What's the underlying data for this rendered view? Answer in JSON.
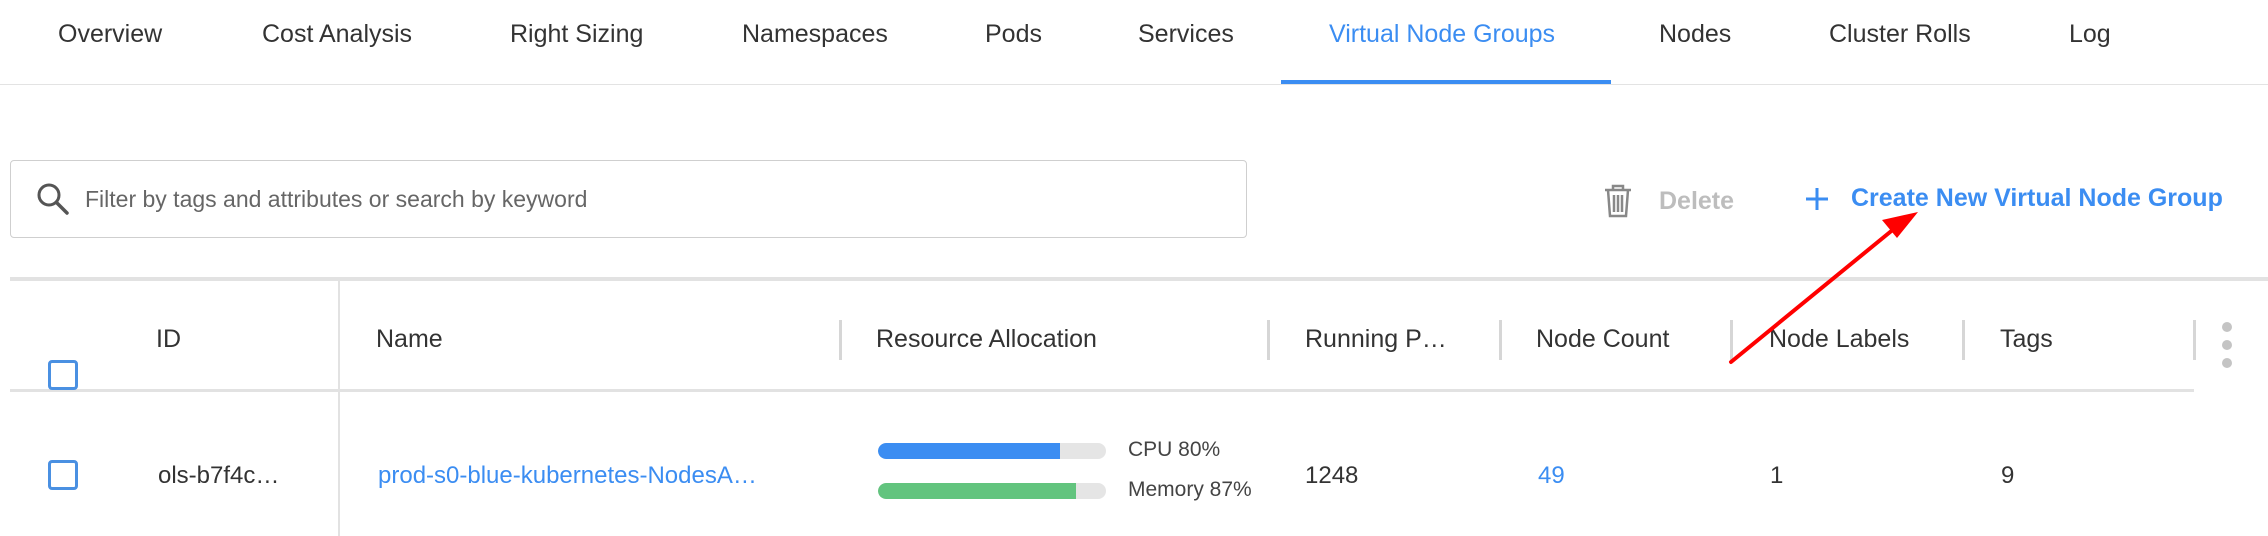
{
  "tabs": [
    {
      "label": "Overview",
      "active": false
    },
    {
      "label": "Cost Analysis",
      "active": false
    },
    {
      "label": "Right Sizing",
      "active": false
    },
    {
      "label": "Namespaces",
      "active": false
    },
    {
      "label": "Pods",
      "active": false
    },
    {
      "label": "Services",
      "active": false
    },
    {
      "label": "Virtual Node Groups",
      "active": true
    },
    {
      "label": "Nodes",
      "active": false
    },
    {
      "label": "Cluster Rolls",
      "active": false
    },
    {
      "label": "Log",
      "active": false
    }
  ],
  "search": {
    "placeholder": "Filter by tags and attributes or search by keyword",
    "value": "",
    "icon": "search-icon"
  },
  "toolbar": {
    "delete_label": "Delete",
    "delete_icon": "trash-icon",
    "create_label": "Create New Virtual Node Group",
    "create_icon": "plus-icon"
  },
  "table": {
    "columns": [
      "ID",
      "Name",
      "Resource Allocation",
      "Running P…",
      "Node Count",
      "Node Labels",
      "Tags"
    ],
    "rows": [
      {
        "id": "ols-b7f4c…",
        "name": "prod-s0-blue-kubernetes-NodesA…",
        "cpu_label": "CPU 80%",
        "cpu_percent": 80,
        "memory_label": "Memory 87%",
        "memory_percent": 87,
        "running_pods": "1248",
        "node_count": "49",
        "node_labels": "1",
        "tags": "9"
      }
    ]
  },
  "colors": {
    "accent": "#3b8df2",
    "cpu_bar": "#3b8df2",
    "memory_bar": "#62c47e",
    "annotation_arrow": "#ff0000"
  }
}
